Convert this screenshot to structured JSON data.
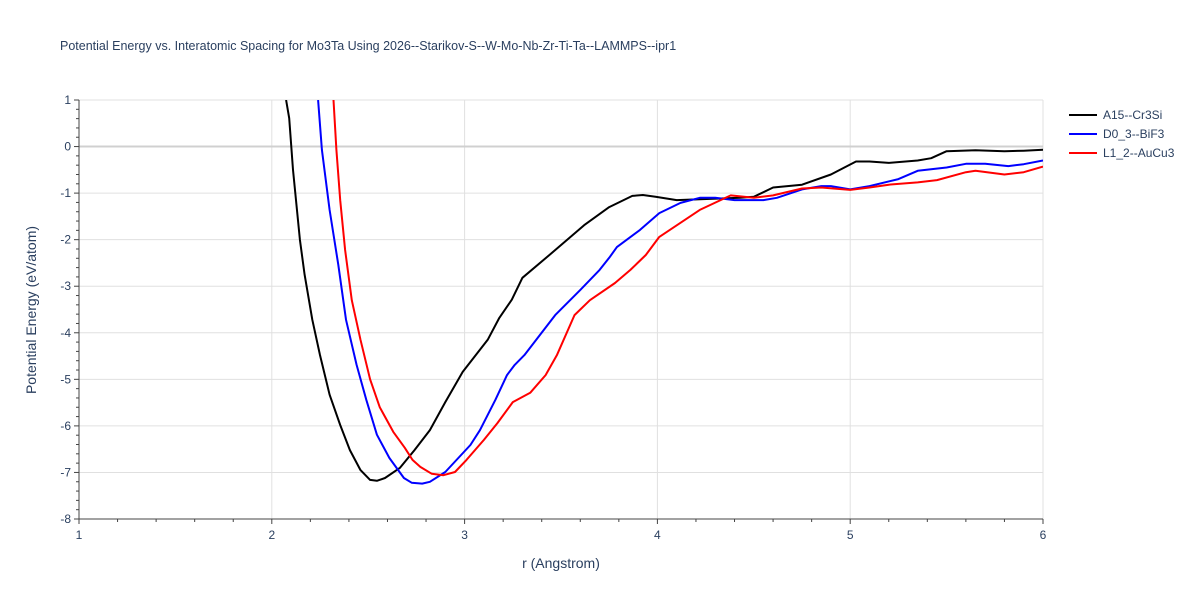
{
  "chart_data": {
    "type": "line",
    "title": "Potential Energy vs. Interatomic Spacing for Mo3Ta Using 2026--Starikov-S--W-Mo-Nb-Zr-Ti-Ta--LAMMPS--ipr1",
    "xlabel": "r (Angstrom)",
    "ylabel": "Potential Energy (eV/atom)",
    "xlim": [
      1,
      6
    ],
    "ylim": [
      -8,
      1
    ],
    "xticks": [
      1,
      2,
      3,
      4,
      5,
      6
    ],
    "yticks": [
      1,
      0,
      -1,
      -2,
      -3,
      -4,
      -5,
      -6,
      -7,
      -8
    ],
    "grid": true,
    "legend_position": "top-right",
    "series": [
      {
        "name": "A15--Cr3Si",
        "color": "#000000",
        "x": [
          2.074,
          2.09,
          2.11,
          2.146,
          2.17,
          2.21,
          2.25,
          2.3,
          2.355,
          2.405,
          2.46,
          2.51,
          2.545,
          2.587,
          2.665,
          2.74,
          2.82,
          2.9,
          2.99,
          3.12,
          3.18,
          3.245,
          3.3,
          3.44,
          3.62,
          3.75,
          3.87,
          3.925,
          3.99,
          4.1,
          4.22,
          4.43,
          4.5,
          4.6,
          4.75,
          4.9,
          4.97,
          5.03,
          5.1,
          5.2,
          5.35,
          5.42,
          5.5,
          5.65,
          5.8,
          5.9,
          6.0
        ],
        "y": [
          1,
          0.61,
          -0.5,
          -2.0,
          -2.75,
          -3.72,
          -4.48,
          -5.33,
          -5.98,
          -6.52,
          -6.95,
          -7.16,
          -7.18,
          -7.12,
          -6.9,
          -6.52,
          -6.09,
          -5.49,
          -4.84,
          -4.15,
          -3.68,
          -3.29,
          -2.82,
          -2.33,
          -1.69,
          -1.3,
          -1.06,
          -1.04,
          -1.08,
          -1.15,
          -1.13,
          -1.1,
          -1.08,
          -0.88,
          -0.82,
          -0.6,
          -0.45,
          -0.32,
          -0.32,
          -0.35,
          -0.3,
          -0.25,
          -0.1,
          -0.08,
          -0.1,
          -0.09,
          -0.07
        ]
      },
      {
        "name": "D0_3--BiF3",
        "color": "#0000ff",
        "x": [
          2.24,
          2.26,
          2.3,
          2.345,
          2.385,
          2.44,
          2.49,
          2.545,
          2.61,
          2.685,
          2.725,
          2.78,
          2.82,
          2.9,
          3.03,
          3.08,
          3.16,
          3.22,
          3.26,
          3.31,
          3.39,
          3.47,
          3.6,
          3.7,
          3.75,
          3.79,
          3.91,
          4.01,
          4.12,
          4.22,
          4.3,
          4.4,
          4.55,
          4.62,
          4.75,
          4.85,
          4.9,
          5.0,
          5.1,
          5.25,
          5.35,
          5.5,
          5.6,
          5.7,
          5.82,
          5.9,
          6.0
        ],
        "y": [
          1,
          -0.07,
          -1.36,
          -2.54,
          -3.72,
          -4.69,
          -5.44,
          -6.19,
          -6.69,
          -7.12,
          -7.22,
          -7.24,
          -7.2,
          -6.99,
          -6.41,
          -6.09,
          -5.44,
          -4.91,
          -4.69,
          -4.48,
          -4.05,
          -3.62,
          -3.08,
          -2.65,
          -2.39,
          -2.16,
          -1.79,
          -1.43,
          -1.21,
          -1.1,
          -1.1,
          -1.15,
          -1.15,
          -1.1,
          -0.92,
          -0.85,
          -0.85,
          -0.92,
          -0.85,
          -0.7,
          -0.52,
          -0.45,
          -0.37,
          -0.37,
          -0.42,
          -0.38,
          -0.3
        ]
      },
      {
        "name": "L1_2--AuCu3",
        "color": "#ff0000",
        "x": [
          2.32,
          2.335,
          2.355,
          2.38,
          2.415,
          2.46,
          2.51,
          2.56,
          2.63,
          2.69,
          2.73,
          2.77,
          2.83,
          2.89,
          2.95,
          3.01,
          3.1,
          3.17,
          3.25,
          3.34,
          3.42,
          3.48,
          3.57,
          3.65,
          3.78,
          3.86,
          3.94,
          4.01,
          4.22,
          4.38,
          4.5,
          4.6,
          4.75,
          4.85,
          5.0,
          5.1,
          5.2,
          5.35,
          5.45,
          5.6,
          5.65,
          5.8,
          5.9,
          6.0
        ],
        "y": [
          1,
          -0.07,
          -1.15,
          -2.22,
          -3.3,
          -4.15,
          -5.0,
          -5.6,
          -6.13,
          -6.47,
          -6.73,
          -6.88,
          -7.03,
          -7.06,
          -6.99,
          -6.73,
          -6.3,
          -5.94,
          -5.49,
          -5.29,
          -4.91,
          -4.47,
          -3.62,
          -3.3,
          -2.93,
          -2.65,
          -2.33,
          -1.94,
          -1.36,
          -1.05,
          -1.1,
          -1.05,
          -0.9,
          -0.88,
          -0.93,
          -0.88,
          -0.82,
          -0.77,
          -0.72,
          -0.55,
          -0.52,
          -0.6,
          -0.55,
          -0.43
        ]
      }
    ]
  }
}
